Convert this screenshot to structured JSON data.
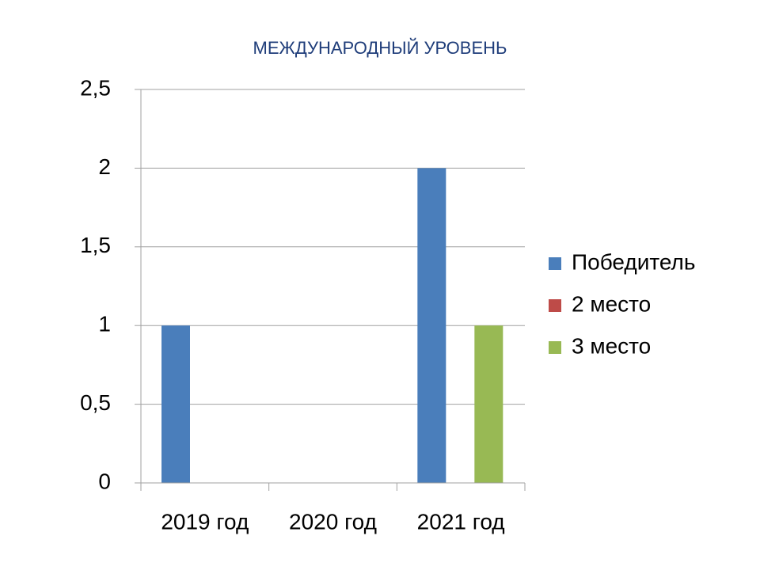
{
  "chart_data": {
    "type": "bar",
    "title": "МЕЖДУНАРОДНЫЙ УРОВЕНЬ",
    "categories": [
      "2019 год",
      "2020 год",
      "2021 год"
    ],
    "series": [
      {
        "name": "Победитель",
        "color": "#4a7ebb",
        "values": [
          1,
          0,
          2
        ]
      },
      {
        "name": "2 место",
        "color": "#be4b48",
        "values": [
          0,
          0,
          0
        ]
      },
      {
        "name": "3 место",
        "color": "#98b954",
        "values": [
          0,
          0,
          1
        ]
      }
    ],
    "ylim": [
      0,
      2.5
    ],
    "yticks": [
      0,
      {
        "value": 0.5,
        "label": "0,5"
      },
      1,
      {
        "value": 1.5,
        "label": "1,5"
      },
      2,
      {
        "value": 2.5,
        "label": "2,5"
      }
    ],
    "grid": true,
    "legend": "right"
  }
}
